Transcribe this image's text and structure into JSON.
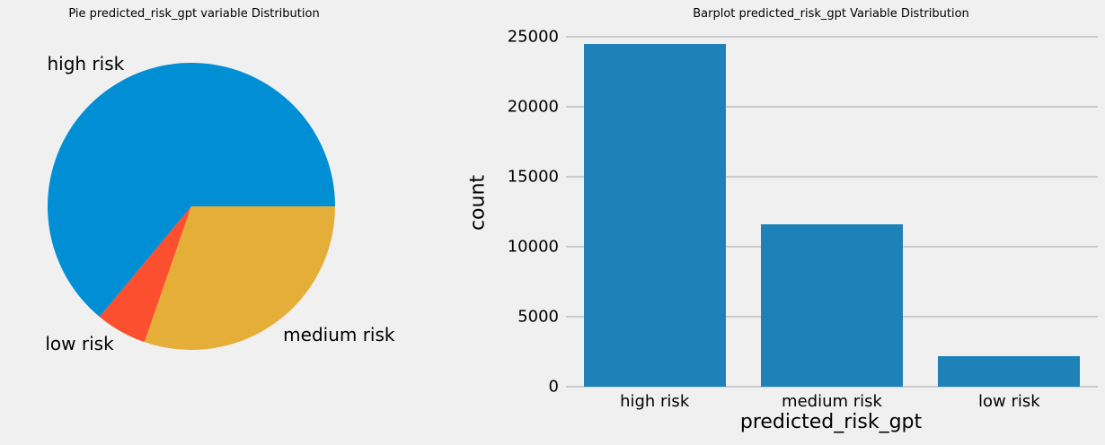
{
  "page": {
    "background_color": "#f0f0f0",
    "gridline_color": "#cbcbcb",
    "text_color": "#000000"
  },
  "chart_data": [
    {
      "type": "pie",
      "title": "Pie predicted_risk_gpt variable Distribution",
      "labels": [
        "high risk",
        "low risk",
        "medium risk"
      ],
      "values": [
        24500,
        2200,
        11600
      ],
      "percentages": [
        64.0,
        5.7,
        30.3
      ],
      "colors": [
        "#008fd5",
        "#fc4f30",
        "#e5ae38"
      ],
      "start_angle_deg": 0,
      "direction": "counterclockwise",
      "label_distance": 1.1,
      "legend": "none"
    },
    {
      "type": "bar",
      "title": "Barplot predicted_risk_gpt Variable Distribution",
      "categories": [
        "high risk",
        "medium risk",
        "low risk"
      ],
      "values": [
        24500,
        11600,
        2200
      ],
      "xlabel": "predicted_risk_gpt",
      "ylabel": "count",
      "ylim": [
        0,
        25000
      ],
      "yticks": [
        0,
        5000,
        10000,
        15000,
        20000,
        25000
      ],
      "bar_color": "#1e82b9",
      "grid": "horizontal",
      "legend": "none"
    }
  ]
}
